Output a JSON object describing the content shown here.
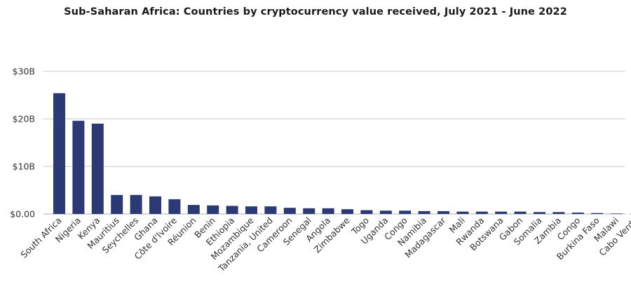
{
  "chart_data": {
    "type": "bar",
    "title": "Sub-Saharan Africa: Countries by cryptocurrency value received, July 2021 - June 2022",
    "xlabel": "",
    "ylabel": "",
    "unit": "B",
    "ylim": [
      0,
      30
    ],
    "yticks": [
      0,
      10,
      20,
      30
    ],
    "ytick_labels": [
      "$0.00",
      "$10B",
      "$20B",
      "$30B"
    ],
    "grid": true,
    "legend": "none",
    "bar_color": "#2b3a74",
    "categories": [
      "South Africa",
      "Nigeria",
      "Kenya",
      "Mauritius",
      "Seychelles",
      "Ghana",
      "Côte d'Ivoire",
      "Réunion",
      "Benin",
      "Ethiopia",
      "Mozambique",
      "Tanzania, United",
      "Cameroon",
      "Senegal",
      "Angola",
      "Zimbabwe",
      "Togo",
      "Uganda",
      "Congo",
      "Namibia",
      "Madagascar",
      "Mali",
      "Rwanda",
      "Botswana",
      "Gabon",
      "Somalia",
      "Zambia",
      "Congo",
      "Burkina Faso",
      "Malawi",
      "Cabo Verde"
    ],
    "values": [
      25.4,
      19.6,
      19.0,
      4.0,
      4.0,
      3.7,
      3.1,
      1.9,
      1.8,
      1.7,
      1.6,
      1.6,
      1.3,
      1.2,
      1.2,
      1.0,
      0.8,
      0.7,
      0.7,
      0.6,
      0.6,
      0.5,
      0.5,
      0.5,
      0.5,
      0.4,
      0.4,
      0.3,
      0.2,
      0.1,
      0.05
    ]
  }
}
